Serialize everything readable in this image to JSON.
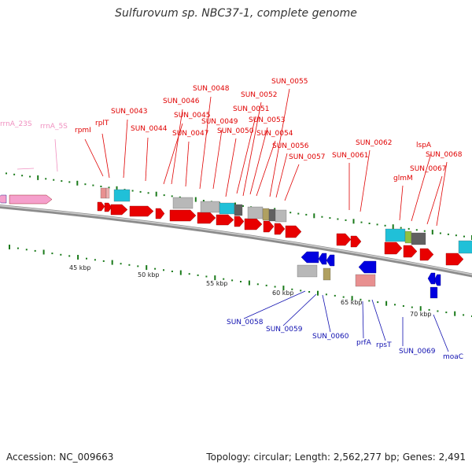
{
  "title": "Sulfurovum sp. NBC37-1, complete genome",
  "footer": {
    "accession": "Accession: NC_009663",
    "summary": "Topology: circular; Length: 2,562,277 bp; Genes: 2,491"
  },
  "colors": {
    "backbone": "#8c8c8c",
    "forward_label": "#e00000",
    "reverse_label": "#1010b0",
    "rna_label": "#f090c0",
    "tick": "#1a7a1a",
    "cds": "#e80000",
    "cds_reverse": "#0000e0",
    "rrna": "#f5a0cc",
    "protein_pink": "#e89090",
    "protein_cyan": "#20c0d8",
    "protein_gray": "#b8b8b8",
    "protein_dark": "#606060",
    "protein_olive": "#b0a060",
    "protein_green": "#90c040"
  },
  "scale_labels": [
    "45 kbp",
    "50 kbp",
    "55 kbp",
    "60 kbp",
    "65 kbp",
    "70 kbp"
  ],
  "forward_labels": [
    "rrnA_23S",
    "rrnA_5S",
    "rpmI",
    "rplT",
    "SUN_0043",
    "SUN_0044",
    "SUN_0045",
    "SUN_0046",
    "SUN_0047",
    "SUN_0048",
    "SUN_0049",
    "SUN_0050",
    "SUN_0051",
    "SUN_0052",
    "SUN_0053",
    "SUN_0054",
    "SUN_0055",
    "SUN_0056",
    "SUN_0057",
    "SUN_0061",
    "SUN_0062",
    "glmM",
    "lspA",
    "SUN_0067",
    "SUN_0068"
  ],
  "reverse_labels": [
    "SUN_0058",
    "SUN_0059",
    "SUN_0060",
    "prfA",
    "rpsT",
    "SUN_0069",
    "moaC"
  ]
}
